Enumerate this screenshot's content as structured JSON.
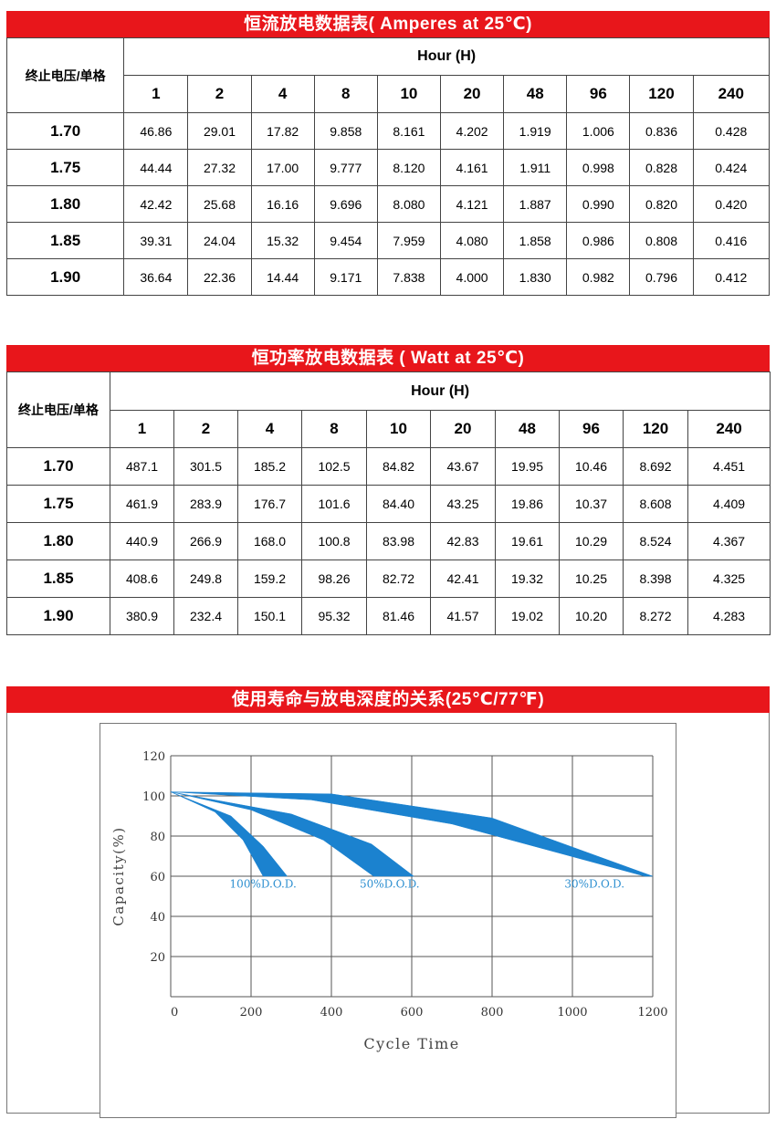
{
  "current_table": {
    "title": "恒流放电数据表( Amperes at 25℃)",
    "voltage_header": "终止电压/单格",
    "hour_header": "Hour (H)",
    "hours": [
      "1",
      "2",
      "4",
      "8",
      "10",
      "20",
      "48",
      "96",
      "120",
      "240"
    ],
    "rows": [
      {
        "voltage": "1.70",
        "values": [
          "46.86",
          "29.01",
          "17.82",
          "9.858",
          "8.161",
          "4.202",
          "1.919",
          "1.006",
          "0.836",
          "0.428"
        ]
      },
      {
        "voltage": "1.75",
        "values": [
          "44.44",
          "27.32",
          "17.00",
          "9.777",
          "8.120",
          "4.161",
          "1.911",
          "0.998",
          "0.828",
          "0.424"
        ]
      },
      {
        "voltage": "1.80",
        "values": [
          "42.42",
          "25.68",
          "16.16",
          "9.696",
          "8.080",
          "4.121",
          "1.887",
          "0.990",
          "0.820",
          "0.420"
        ]
      },
      {
        "voltage": "1.85",
        "values": [
          "39.31",
          "24.04",
          "15.32",
          "9.454",
          "7.959",
          "4.080",
          "1.858",
          "0.986",
          "0.808",
          "0.416"
        ]
      },
      {
        "voltage": "1.90",
        "values": [
          "36.64",
          "22.36",
          "14.44",
          "9.171",
          "7.838",
          "4.000",
          "1.830",
          "0.982",
          "0.796",
          "0.412"
        ]
      }
    ]
  },
  "power_table": {
    "title": "恒功率放电数据表 ( Watt at 25℃)",
    "voltage_header": "终止电压/单格",
    "hour_header": "Hour (H)",
    "hours": [
      "1",
      "2",
      "4",
      "8",
      "10",
      "20",
      "48",
      "96",
      "120",
      "240"
    ],
    "rows": [
      {
        "voltage": "1.70",
        "values": [
          "487.1",
          "301.5",
          "185.2",
          "102.5",
          "84.82",
          "43.67",
          "19.95",
          "10.46",
          "8.692",
          "4.451"
        ]
      },
      {
        "voltage": "1.75",
        "values": [
          "461.9",
          "283.9",
          "176.7",
          "101.6",
          "84.40",
          "43.25",
          "19.86",
          "10.37",
          "8.608",
          "4.409"
        ]
      },
      {
        "voltage": "1.80",
        "values": [
          "440.9",
          "266.9",
          "168.0",
          "100.8",
          "83.98",
          "42.83",
          "19.61",
          "10.29",
          "8.524",
          "4.367"
        ]
      },
      {
        "voltage": "1.85",
        "values": [
          "408.6",
          "249.8",
          "159.2",
          "98.26",
          "82.72",
          "42.41",
          "19.32",
          "10.25",
          "8.398",
          "4.325"
        ]
      },
      {
        "voltage": "1.90",
        "values": [
          "380.9",
          "232.4",
          "150.1",
          "95.32",
          "81.46",
          "41.57",
          "19.02",
          "10.20",
          "8.272",
          "4.283"
        ]
      }
    ]
  },
  "life_section": {
    "title": "使用寿命与放电深度的关系(25℃/77℉)"
  },
  "chart_data": {
    "type": "area",
    "xlabel": "Cycle Time",
    "ylabel": "Capacity(%)",
    "xlim": [
      0,
      1200
    ],
    "ylim": [
      0,
      120
    ],
    "x_ticks": [
      "0",
      "200",
      "400",
      "600",
      "800",
      "1000",
      "1200"
    ],
    "y_ticks": [
      "20",
      "40",
      "60",
      "80",
      "100",
      "120"
    ],
    "grid": true,
    "band_color": "#1b82cf",
    "label_color": "#2d8fd0",
    "series": [
      {
        "name": "100%D.O.D.",
        "upper": [
          [
            0,
            102
          ],
          [
            150,
            90
          ],
          [
            230,
            75
          ],
          [
            290,
            60
          ]
        ],
        "lower": [
          [
            0,
            102
          ],
          [
            110,
            92
          ],
          [
            180,
            78
          ],
          [
            230,
            60
          ]
        ]
      },
      {
        "name": "50%D.O.D.",
        "upper": [
          [
            0,
            102
          ],
          [
            300,
            91
          ],
          [
            500,
            76
          ],
          [
            605,
            60
          ]
        ],
        "lower": [
          [
            0,
            102
          ],
          [
            200,
            93
          ],
          [
            380,
            78
          ],
          [
            505,
            60
          ]
        ]
      },
      {
        "name": "30%D.O.D.",
        "upper": [
          [
            0,
            102
          ],
          [
            400,
            101
          ],
          [
            800,
            89
          ],
          [
            1200,
            60
          ]
        ],
        "lower": [
          [
            0,
            102
          ],
          [
            350,
            98
          ],
          [
            700,
            86
          ],
          [
            1180,
            60
          ]
        ]
      }
    ]
  }
}
